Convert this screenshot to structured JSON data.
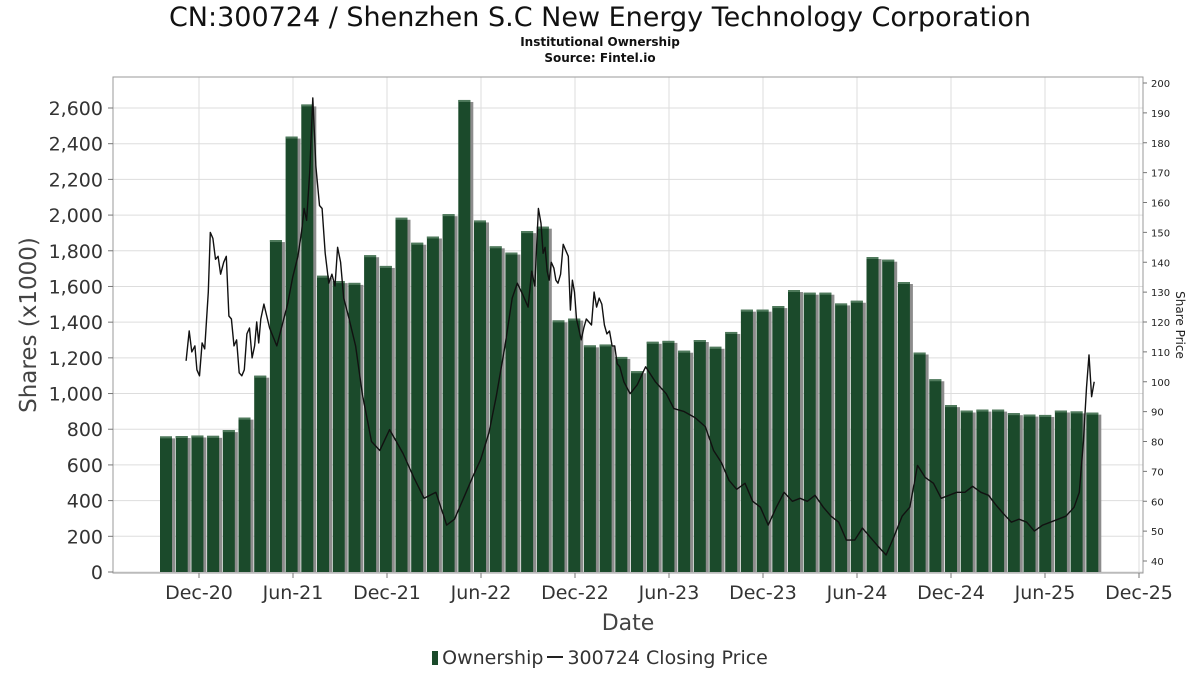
{
  "title": "CN:300724 / Shenzhen S.C New Energy Technology Corporation",
  "subtitle": "Institutional Ownership",
  "source": "Source: Fintel.io",
  "colors": {
    "bar": "#1b4a2b",
    "bar_shadow": "#8c8c8c",
    "line": "#111111",
    "grid": "#dddddd",
    "frame": "#999999"
  },
  "chart_data": {
    "type": "bar",
    "xlabel": "Date",
    "ylabel": "Shares (x1000)",
    "y2label": "Share Price",
    "x_ticks": [
      "Dec-20",
      "Jun-21",
      "Dec-21",
      "Jun-22",
      "Dec-22",
      "Jun-23",
      "Dec-23",
      "Jun-24",
      "Dec-24",
      "Jun-25",
      "Dec-25"
    ],
    "y_ticks": [
      "0",
      "200",
      "400",
      "600",
      "800",
      "1,000",
      "1,200",
      "1,400",
      "1,600",
      "1,800",
      "2,000",
      "2,200",
      "2,400",
      "2,600"
    ],
    "y2_ticks": [
      "40",
      "50",
      "60",
      "70",
      "80",
      "90",
      "100",
      "110",
      "120",
      "130",
      "140",
      "150",
      "160",
      "170",
      "180",
      "190",
      "200"
    ],
    "ylim": [
      0,
      2760
    ],
    "y2lim": [
      37,
      201
    ],
    "grid": true,
    "legend_position": "bottom",
    "series": [
      {
        "name": "Ownership",
        "type": "bar",
        "values": [
          760,
          762,
          765,
          763,
          795,
          865,
          1100,
          1860,
          2440,
          2620,
          1660,
          1630,
          1620,
          1775,
          1715,
          1985,
          1845,
          1880,
          2005,
          2645,
          1970,
          1825,
          1790,
          1910,
          1935,
          1410,
          1420,
          1270,
          1275,
          1205,
          1125,
          1290,
          1295,
          1240,
          1300,
          1262,
          1345,
          1470,
          1470,
          1490,
          1580,
          1565,
          1565,
          1505,
          1520,
          1765,
          1750,
          1625,
          1230,
          1080,
          935,
          905,
          910,
          910,
          890,
          882,
          880,
          905,
          900,
          893
        ]
      },
      {
        "name": "300724 Closing Price",
        "type": "line",
        "points": [
          [
            "2020-11-20",
            107
          ],
          [
            "2020-11-26",
            117
          ],
          [
            "2020-12-01",
            110
          ],
          [
            "2020-12-07",
            112
          ],
          [
            "2020-12-11",
            104
          ],
          [
            "2020-12-16",
            102
          ],
          [
            "2020-12-21",
            113
          ],
          [
            "2020-12-26",
            111
          ],
          [
            "2021-01-02",
            130
          ],
          [
            "2021-01-06",
            150
          ],
          [
            "2021-01-11",
            148
          ],
          [
            "2021-01-16",
            141
          ],
          [
            "2021-01-21",
            142
          ],
          [
            "2021-01-26",
            136
          ],
          [
            "2021-02-01",
            140
          ],
          [
            "2021-02-06",
            142
          ],
          [
            "2021-02-11",
            122
          ],
          [
            "2021-02-16",
            121
          ],
          [
            "2021-02-21",
            112
          ],
          [
            "2021-02-26",
            114
          ],
          [
            "2021-03-03",
            103
          ],
          [
            "2021-03-08",
            102
          ],
          [
            "2021-03-13",
            104
          ],
          [
            "2021-03-18",
            116
          ],
          [
            "2021-03-23",
            118
          ],
          [
            "2021-03-28",
            108
          ],
          [
            "2021-04-02",
            112
          ],
          [
            "2021-04-06",
            120
          ],
          [
            "2021-04-10",
            113
          ],
          [
            "2021-04-14",
            121
          ],
          [
            "2021-04-20",
            126
          ],
          [
            "2021-05-01",
            118
          ],
          [
            "2021-05-15",
            112
          ],
          [
            "2021-06-05",
            126
          ],
          [
            "2021-06-15",
            135
          ],
          [
            "2021-06-25",
            142
          ],
          [
            "2021-07-02",
            150
          ],
          [
            "2021-07-07",
            158
          ],
          [
            "2021-07-12",
            154
          ],
          [
            "2021-07-18",
            170
          ],
          [
            "2021-07-24",
            195
          ],
          [
            "2021-07-30",
            172
          ],
          [
            "2021-08-06",
            159
          ],
          [
            "2021-08-11",
            158
          ],
          [
            "2021-08-17",
            143
          ],
          [
            "2021-08-24",
            133
          ],
          [
            "2021-08-30",
            136
          ],
          [
            "2021-09-05",
            132
          ],
          [
            "2021-09-10",
            145
          ],
          [
            "2021-09-16",
            140
          ],
          [
            "2021-09-22",
            128
          ],
          [
            "2021-10-01",
            122
          ],
          [
            "2021-10-15",
            112
          ],
          [
            "2021-10-28",
            96
          ],
          [
            "2021-11-15",
            80
          ],
          [
            "2021-12-01",
            77
          ],
          [
            "2021-12-20",
            84
          ],
          [
            "2022-01-15",
            76
          ],
          [
            "2022-02-05",
            68
          ],
          [
            "2022-02-25",
            61
          ],
          [
            "2022-03-20",
            63
          ],
          [
            "2022-04-10",
            52
          ],
          [
            "2022-04-25",
            54
          ],
          [
            "2022-05-15",
            62
          ],
          [
            "2022-05-30",
            68
          ],
          [
            "2022-06-15",
            74
          ],
          [
            "2022-07-01",
            83
          ],
          [
            "2022-07-15",
            95
          ],
          [
            "2022-08-01",
            112
          ],
          [
            "2022-08-15",
            128
          ],
          [
            "2022-08-25",
            133
          ],
          [
            "2022-09-05",
            129
          ],
          [
            "2022-09-15",
            125
          ],
          [
            "2022-09-22",
            137
          ],
          [
            "2022-09-28",
            132
          ],
          [
            "2022-10-05",
            158
          ],
          [
            "2022-10-10",
            153
          ],
          [
            "2022-10-14",
            143
          ],
          [
            "2022-10-18",
            145
          ],
          [
            "2022-10-22",
            137
          ],
          [
            "2022-10-26",
            134
          ],
          [
            "2022-10-30",
            140
          ],
          [
            "2022-11-04",
            138
          ],
          [
            "2022-11-08",
            134
          ],
          [
            "2022-11-12",
            133
          ],
          [
            "2022-11-17",
            136
          ],
          [
            "2022-11-22",
            146
          ],
          [
            "2022-11-27",
            144
          ],
          [
            "2022-12-02",
            142
          ],
          [
            "2022-12-06",
            124
          ],
          [
            "2022-12-10",
            134
          ],
          [
            "2022-12-14",
            130
          ],
          [
            "2022-12-18",
            121
          ],
          [
            "2022-12-22",
            118
          ],
          [
            "2022-12-27",
            114
          ],
          [
            "2023-01-01",
            118
          ],
          [
            "2023-01-06",
            121
          ],
          [
            "2023-01-11",
            120
          ],
          [
            "2023-01-16",
            119
          ],
          [
            "2023-01-21",
            130
          ],
          [
            "2023-01-26",
            125
          ],
          [
            "2023-01-31",
            128
          ],
          [
            "2023-02-05",
            126
          ],
          [
            "2023-02-10",
            119
          ],
          [
            "2023-02-15",
            116
          ],
          [
            "2023-02-20",
            117
          ],
          [
            "2023-02-25",
            112
          ],
          [
            "2023-03-02",
            112
          ],
          [
            "2023-03-07",
            106
          ],
          [
            "2023-03-12",
            105
          ],
          [
            "2023-03-20",
            100
          ],
          [
            "2023-04-01",
            96
          ],
          [
            "2023-04-15",
            99
          ],
          [
            "2023-05-01",
            105
          ],
          [
            "2023-05-20",
            100
          ],
          [
            "2023-06-10",
            96
          ],
          [
            "2023-06-25",
            91
          ],
          [
            "2023-07-15",
            90
          ],
          [
            "2023-08-05",
            88
          ],
          [
            "2023-08-25",
            85
          ],
          [
            "2023-09-10",
            77
          ],
          [
            "2023-09-25",
            73
          ],
          [
            "2023-10-10",
            67
          ],
          [
            "2023-10-25",
            64
          ],
          [
            "2023-11-10",
            66
          ],
          [
            "2023-11-25",
            60
          ],
          [
            "2023-12-10",
            58
          ],
          [
            "2023-12-25",
            52
          ],
          [
            "2024-01-10",
            58
          ],
          [
            "2024-01-25",
            63
          ],
          [
            "2024-02-10",
            60
          ],
          [
            "2024-02-25",
            61
          ],
          [
            "2024-03-10",
            60
          ],
          [
            "2024-03-25",
            62
          ],
          [
            "2024-04-10",
            58
          ],
          [
            "2024-04-25",
            55
          ],
          [
            "2024-05-10",
            53
          ],
          [
            "2024-05-25",
            47
          ],
          [
            "2024-06-10",
            47
          ],
          [
            "2024-06-25",
            51
          ],
          [
            "2024-07-10",
            48
          ],
          [
            "2024-07-25",
            45
          ],
          [
            "2024-08-10",
            42
          ],
          [
            "2024-08-25",
            48
          ],
          [
            "2024-09-10",
            55
          ],
          [
            "2024-09-25",
            58
          ],
          [
            "2024-10-10",
            72
          ],
          [
            "2024-10-25",
            68
          ],
          [
            "2024-11-10",
            66
          ],
          [
            "2024-11-25",
            61
          ],
          [
            "2024-12-10",
            62
          ],
          [
            "2024-12-25",
            63
          ],
          [
            "2025-01-10",
            63
          ],
          [
            "2025-01-25",
            65
          ],
          [
            "2025-02-10",
            63
          ],
          [
            "2025-02-25",
            62
          ],
          [
            "2025-03-10",
            59
          ],
          [
            "2025-03-25",
            56
          ],
          [
            "2025-04-10",
            53
          ],
          [
            "2025-04-25",
            54
          ],
          [
            "2025-05-10",
            53
          ],
          [
            "2025-05-25",
            50
          ],
          [
            "2025-06-10",
            52
          ],
          [
            "2025-06-25",
            53
          ],
          [
            "2025-07-10",
            54
          ],
          [
            "2025-07-25",
            55
          ],
          [
            "2025-08-10",
            58
          ],
          [
            "2025-08-20",
            63
          ],
          [
            "2025-08-28",
            80
          ],
          [
            "2025-09-03",
            98
          ],
          [
            "2025-09-08",
            109
          ],
          [
            "2025-09-13",
            95
          ],
          [
            "2025-09-18",
            100
          ]
        ]
      }
    ]
  }
}
